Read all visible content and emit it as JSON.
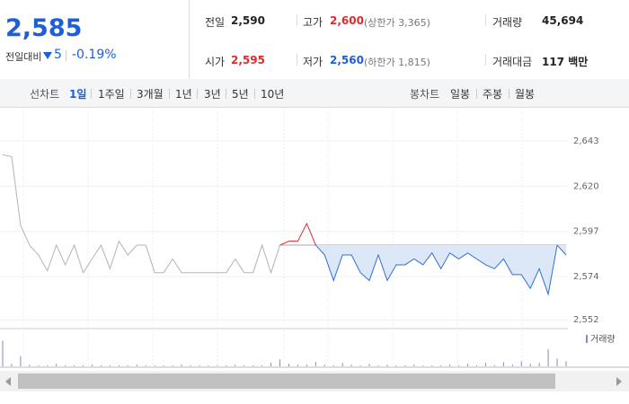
{
  "header": {
    "price": "2,585",
    "change_label": "전일대비",
    "change": "5",
    "change_percent": "-0.19%",
    "stats": [
      {
        "label": "전일",
        "value": "2,590"
      },
      {
        "label": "고가",
        "value": "2,600",
        "note": "(상한가 3,365)"
      },
      {
        "label": "거래량",
        "value": "45,694"
      },
      {
        "label": "시가",
        "value": "2,595"
      },
      {
        "label": "저가",
        "value": "2,560",
        "note": "(하한가 1,815)"
      },
      {
        "label": "거래대금",
        "value": "117 백만"
      }
    ]
  },
  "tabs": {
    "line_label": "선차트",
    "line": [
      "1일",
      "1주일",
      "3개월",
      "1년",
      "3년",
      "5년",
      "10년"
    ],
    "candle_label": "봉차트",
    "candle": [
      "일봉",
      "주봉",
      "월봉"
    ]
  },
  "chart_data": {
    "type": "line",
    "x": [
      0,
      1,
      2,
      3,
      4,
      5,
      6,
      7,
      8,
      9,
      10,
      11,
      12,
      13,
      14,
      15,
      16,
      17,
      18,
      19,
      20,
      21,
      22,
      23,
      24,
      25,
      26,
      27,
      28,
      29,
      30,
      31,
      32,
      33,
      34,
      35,
      36,
      37,
      38,
      39,
      40,
      41,
      42,
      43,
      44,
      45,
      46,
      47,
      48,
      49,
      50,
      51,
      52,
      53,
      54,
      55,
      56,
      57,
      58,
      59,
      60,
      61,
      62,
      63
    ],
    "xlim": [
      0,
      63
    ],
    "ylim": [
      2548,
      2659
    ],
    "yticks": [
      {
        "value": 2643,
        "label": "2,643"
      },
      {
        "value": 2620,
        "label": "2,620"
      },
      {
        "value": 2597,
        "label": "2,597"
      },
      {
        "value": 2574,
        "label": "2,574"
      },
      {
        "value": 2552,
        "label": "2,552"
      }
    ],
    "grid": true,
    "reference_line": 2590,
    "series": [
      {
        "color": "#b4b4b4",
        "values": [
          2636,
          2635,
          2600,
          2590,
          2585,
          2577,
          2590,
          2580,
          2590,
          2576,
          2583,
          2590,
          2578,
          2592,
          2585,
          2590,
          2590,
          2576,
          2576,
          2583,
          2576,
          2576,
          2576,
          2576,
          2576,
          2576,
          2583,
          2576,
          2576,
          2590,
          2576,
          2590,
          null,
          null,
          null,
          null,
          null,
          null,
          null,
          null,
          null,
          null,
          null,
          null,
          null,
          null,
          null,
          null,
          null,
          null,
          null,
          null,
          null,
          null,
          null,
          null,
          null,
          null,
          null,
          null,
          null,
          null,
          null,
          null
        ]
      },
      {
        "color": "#e12a2a",
        "values": [
          null,
          null,
          null,
          null,
          null,
          null,
          null,
          null,
          null,
          null,
          null,
          null,
          null,
          null,
          null,
          null,
          null,
          null,
          null,
          null,
          null,
          null,
          null,
          null,
          null,
          null,
          null,
          null,
          null,
          null,
          null,
          2590,
          2592,
          2592,
          2601,
          2590,
          null,
          null,
          null,
          null,
          null,
          null,
          null,
          null,
          null,
          null,
          null,
          null,
          null,
          null,
          null,
          null,
          null,
          null,
          null,
          null,
          null,
          null,
          null,
          null,
          null,
          null,
          null,
          null
        ]
      },
      {
        "color": "#2f6fd0",
        "fill": "#dce8f7",
        "values": [
          null,
          null,
          null,
          null,
          null,
          null,
          null,
          null,
          null,
          null,
          null,
          null,
          null,
          null,
          null,
          null,
          null,
          null,
          null,
          null,
          null,
          null,
          null,
          null,
          null,
          null,
          null,
          null,
          null,
          null,
          null,
          null,
          null,
          null,
          null,
          2590,
          2585,
          2572,
          2585,
          2585,
          2576,
          2572,
          2585,
          2572,
          2580,
          2580,
          2583,
          2580,
          2586,
          2578,
          2586,
          2583,
          2586,
          2583,
          2580,
          2578,
          2583,
          2575,
          2575,
          2568,
          2578,
          2565,
          2590,
          2585
        ]
      }
    ],
    "volume": {
      "name": "거래량",
      "color": "#9b7fc4",
      "axis": "y2",
      "values": [
        30,
        3,
        12,
        2,
        1,
        1,
        3,
        1,
        1,
        1,
        2,
        1,
        1,
        1,
        1,
        2,
        1,
        1,
        1,
        1,
        2,
        1,
        1,
        1,
        1,
        1,
        2,
        1,
        1,
        1,
        4,
        8,
        3,
        2,
        2,
        5,
        2,
        1,
        4,
        2,
        1,
        3,
        1,
        2,
        1,
        1,
        2,
        1,
        1,
        1,
        2,
        1,
        3,
        1,
        4,
        1,
        5,
        2,
        6,
        3,
        4,
        20,
        9,
        6
      ]
    },
    "y2lim": [
      0,
      40
    ]
  }
}
